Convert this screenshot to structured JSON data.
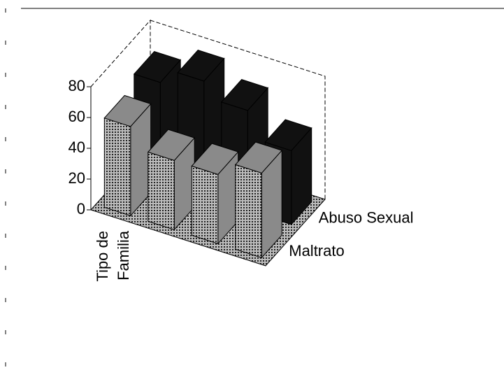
{
  "chart_data": {
    "type": "bar3d",
    "categories": [
      null,
      null,
      null,
      null
    ],
    "series": [
      {
        "name": "Maltrato",
        "color": "#8a8a8a",
        "values": [
          58,
          45,
          45,
          55
        ]
      },
      {
        "name": "Abuso Sexual",
        "color": "#111111",
        "values": [
          65,
          75,
          65,
          48
        ]
      }
    ],
    "ylim": [
      0,
      80
    ],
    "yticks": [
      0,
      20,
      40,
      60,
      80
    ],
    "x_label_lines": [
      "Tipo de",
      "Familia"
    ]
  }
}
